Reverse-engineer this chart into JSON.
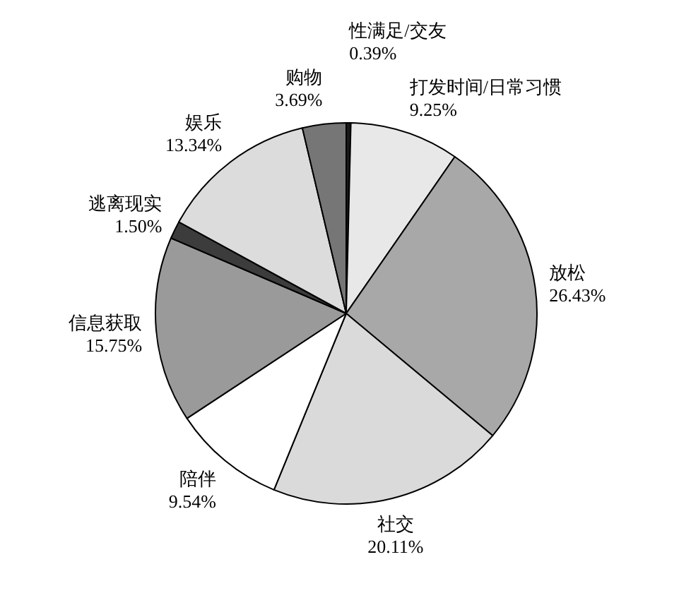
{
  "chart_data": {
    "type": "pie",
    "categories": [
      "性满足/交友",
      "打发时间/日常习惯",
      "放松",
      "社交",
      "陪伴",
      "信息获取",
      "逃离现实",
      "娱乐",
      "购物"
    ],
    "values": [
      0.39,
      9.25,
      26.43,
      20.11,
      9.54,
      15.75,
      1.5,
      13.34,
      3.69
    ],
    "colors": [
      "#1a1a1a",
      "#e8e8e8",
      "#a8a8a8",
      "#dadada",
      "#ffffff",
      "#9a9a9a",
      "#3c3c3c",
      "#dcdcdc",
      "#767676"
    ],
    "value_labels": [
      "0.39%",
      "9.25%",
      "26.43%",
      "20.11%",
      "9.54%",
      "15.75%",
      "1.50%",
      "13.34%",
      "3.69%"
    ]
  }
}
